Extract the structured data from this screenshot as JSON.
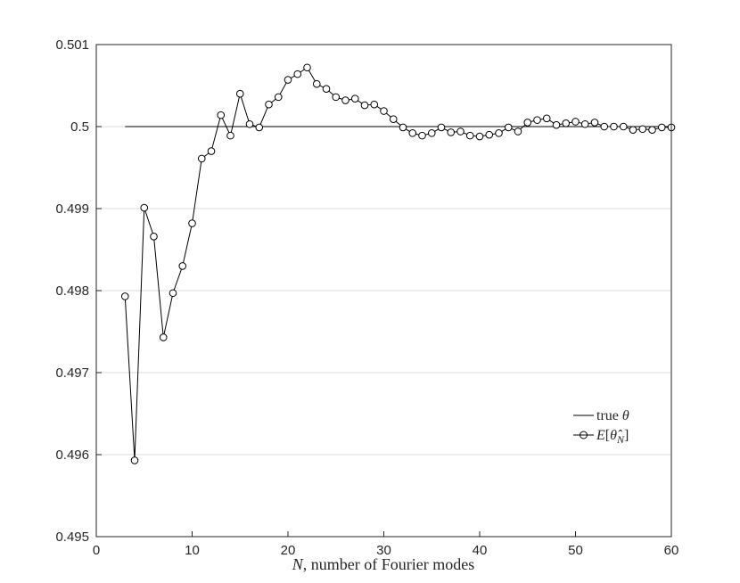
{
  "chart_data": {
    "type": "line",
    "xlabel": "N, number of Fourier modes",
    "ylabel": "",
    "xlim": [
      0,
      60
    ],
    "ylim": [
      0.495,
      0.501
    ],
    "xticks": [
      0,
      10,
      20,
      30,
      40,
      50,
      60
    ],
    "yticks": [
      0.495,
      0.496,
      0.497,
      0.498,
      0.499,
      0.5,
      0.501
    ],
    "ytick_labels": [
      "0.495",
      "0.496",
      "0.497",
      "0.498",
      "0.499",
      "0.5",
      "0.501"
    ],
    "grid": "horizontal",
    "legend_position": "lower-right",
    "series": [
      {
        "name": "true θ",
        "marker": "none",
        "color": "#000000",
        "x": [
          3,
          60
        ],
        "y": [
          0.5,
          0.5
        ]
      },
      {
        "name": "E[θ̂_N]",
        "marker": "circle",
        "color": "#000000",
        "x": [
          3,
          4,
          5,
          6,
          7,
          8,
          9,
          10,
          11,
          12,
          13,
          14,
          15,
          16,
          17,
          18,
          19,
          20,
          21,
          22,
          23,
          24,
          25,
          26,
          27,
          28,
          29,
          30,
          31,
          32,
          33,
          34,
          35,
          36,
          37,
          38,
          39,
          40,
          41,
          42,
          43,
          44,
          45,
          46,
          47,
          48,
          49,
          50,
          51,
          52,
          53,
          54,
          55,
          56,
          57,
          58,
          59,
          60
        ],
        "y": [
          0.49793,
          0.49593,
          0.49901,
          0.49866,
          0.49743,
          0.49797,
          0.4983,
          0.49882,
          0.49961,
          0.4997,
          0.50014,
          0.49989,
          0.5004,
          0.50003,
          0.49999,
          0.50027,
          0.50036,
          0.50057,
          0.50064,
          0.50072,
          0.50052,
          0.50046,
          0.50036,
          0.50032,
          0.50034,
          0.50026,
          0.50027,
          0.50019,
          0.50009,
          0.49999,
          0.49992,
          0.49989,
          0.49992,
          0.49999,
          0.49993,
          0.49994,
          0.49989,
          0.49988,
          0.4999,
          0.49992,
          0.49999,
          0.49994,
          0.50005,
          0.50008,
          0.5001,
          0.50002,
          0.50004,
          0.50006,
          0.50003,
          0.50005,
          0.5,
          0.5,
          0.5,
          0.49996,
          0.49997,
          0.49996,
          0.49999,
          0.49999
        ]
      }
    ]
  }
}
